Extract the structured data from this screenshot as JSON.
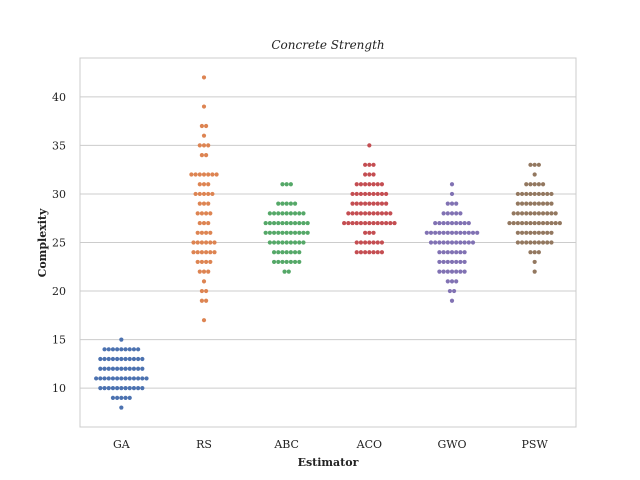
{
  "chart_data": {
    "type": "scatter",
    "subtype": "swarm",
    "title": "Concrete Strength",
    "xlabel": "Estimator",
    "ylabel": "Complexity",
    "ylim": [
      6,
      44
    ],
    "yticks": [
      10,
      15,
      20,
      25,
      30,
      35,
      40
    ],
    "grid": "horizontal",
    "categories": [
      "GA",
      "RS",
      "ABC",
      "ACO",
      "GWO",
      "PSW"
    ],
    "series": [
      {
        "color": "#4c72b0",
        "counts": {
          "8": 1,
          "9": 5,
          "10": 11,
          "11": 13,
          "12": 11,
          "13": 11,
          "14": 9,
          "15": 1
        }
      },
      {
        "color": "#dd8452",
        "counts": {
          "17": 1,
          "19": 2,
          "20": 2,
          "21": 1,
          "22": 3,
          "23": 4,
          "24": 6,
          "25": 6,
          "26": 4,
          "27": 3,
          "28": 4,
          "29": 3,
          "30": 5,
          "31": 3,
          "32": 7,
          "34": 2,
          "35": 3,
          "36": 1,
          "37": 2,
          "39": 1,
          "42": 1
        }
      },
      {
        "color": "#55a868",
        "counts": {
          "22": 2,
          "23": 7,
          "24": 7,
          "25": 9,
          "26": 11,
          "27": 11,
          "28": 9,
          "29": 5,
          "31": 3
        }
      },
      {
        "color": "#c44e52",
        "counts": {
          "24": 7,
          "25": 7,
          "26": 3,
          "27": 13,
          "28": 11,
          "29": 9,
          "30": 9,
          "31": 7,
          "32": 3,
          "33": 3,
          "35": 1
        }
      },
      {
        "color": "#8172b3",
        "counts": {
          "19": 1,
          "20": 2,
          "21": 3,
          "22": 7,
          "23": 7,
          "24": 7,
          "25": 11,
          "26": 13,
          "27": 9,
          "28": 5,
          "29": 3,
          "30": 1,
          "31": 1
        }
      },
      {
        "color": "#937860",
        "counts": {
          "22": 1,
          "23": 1,
          "24": 3,
          "25": 9,
          "26": 9,
          "27": 13,
          "28": 11,
          "29": 9,
          "30": 9,
          "31": 5,
          "32": 1,
          "33": 3
        }
      }
    ]
  }
}
